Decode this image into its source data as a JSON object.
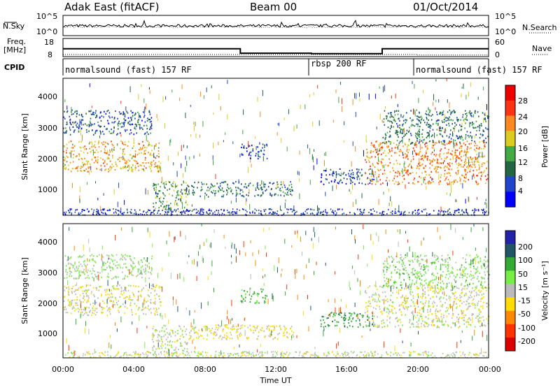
{
  "header": {
    "station": "Adak East (fitACF)",
    "beam": "Beam 00",
    "date": "01/Oct/2014"
  },
  "noise_panel": {
    "left_label": "N.Sky",
    "right_label": "N.Search",
    "left_ticks": [
      "10^5",
      "10^0"
    ],
    "right_ticks": [
      "10^5",
      "10^0"
    ]
  },
  "freq_panel": {
    "left_label_line1": "Freq.",
    "left_label_line2": "[MHz]",
    "right_label": "Nave",
    "left_ticks": [
      "18",
      "8"
    ],
    "right_ticks": [
      "60",
      "0"
    ]
  },
  "cpid_panel": {
    "label": "CPID",
    "segments": [
      {
        "label": "normalsound (fast) 157 RF",
        "start": "00:00",
        "end": "14:00"
      },
      {
        "label": "rbsp 200 RF",
        "start": "14:00",
        "end": "20:00"
      },
      {
        "label": "normalsound (fast) 157 RF",
        "start": "20:00",
        "end": "24:00"
      }
    ]
  },
  "power_panel": {
    "ylabel": "Slant Range [km]",
    "yticks": [
      "1000",
      "2000",
      "3000",
      "4000"
    ],
    "colorbar_label": "Power [dB]",
    "colorbar_ticks": [
      "4",
      "8",
      "12",
      "16",
      "20",
      "24",
      "28"
    ],
    "colors": [
      "#0000ff",
      "#2244cc",
      "#226644",
      "#44aa44",
      "#ddcc22",
      "#ff8822",
      "#ff3311",
      "#ee0000"
    ]
  },
  "velocity_panel": {
    "ylabel": "Slant Range [km]",
    "yticks": [
      "1000",
      "2000",
      "3000",
      "4000"
    ],
    "colorbar_label": "Velocity [m s⁻¹]",
    "colorbar_ticks": [
      "200",
      "100",
      "50",
      "15",
      "-15",
      "-50",
      "-100",
      "-200"
    ],
    "colors": [
      "#2222aa",
      "#225566",
      "#33aa33",
      "#77ee44",
      "#bbbbbb",
      "#ffdd00",
      "#ff8800",
      "#ff3300",
      "#dd0000"
    ]
  },
  "xaxis": {
    "label": "Time UT",
    "ticks": [
      "00:00",
      "04:00",
      "08:00",
      "12:00",
      "16:00",
      "20:00",
      "00:00"
    ]
  },
  "chart_data": {
    "type": "heatmap",
    "title": "Adak East (fitACF)",
    "subtitle": "Beam 00 01/Oct/2014",
    "xlabel": "Time UT",
    "ylabel": "Slant Range [km]",
    "x_range": [
      "00:00",
      "24:00"
    ],
    "ylim": [
      180,
      4600
    ],
    "power_range_dB": [
      0,
      32
    ],
    "velocity_range": [
      -250,
      250
    ],
    "frequency_MHz": [
      {
        "start": "00:00",
        "end": "10:00",
        "value": 12.3
      },
      {
        "start": "10:00",
        "end": "14:00",
        "value": 9.9
      },
      {
        "start": "14:00",
        "end": "18:00",
        "value": 9.6
      },
      {
        "start": "18:00",
        "end": "24:00",
        "value": 12.3
      }
    ],
    "nave": [
      {
        "start": "00:00",
        "end": "20:00",
        "value": 7
      },
      {
        "start": "20:00",
        "end": "24:00",
        "value": 5
      }
    ],
    "echo_regions": [
      {
        "start": "00:00",
        "end": "05:30",
        "range_km": [
          1600,
          2600
        ],
        "power_dB": 20,
        "velocity": -10
      },
      {
        "start": "00:00",
        "end": "05:00",
        "range_km": [
          2800,
          3600
        ],
        "power_dB": 8,
        "velocity": 20
      },
      {
        "start": "05:00",
        "end": "07:00",
        "range_km": [
          300,
          1300
        ],
        "power_dB": 14,
        "velocity": 0
      },
      {
        "start": "07:00",
        "end": "13:00",
        "range_km": [
          800,
          1300
        ],
        "power_dB": 10,
        "velocity": -20
      },
      {
        "start": "10:00",
        "end": "11:30",
        "range_km": [
          2000,
          2500
        ],
        "power_dB": 6,
        "velocity": 50
      },
      {
        "start": "14:30",
        "end": "17:30",
        "range_km": [
          1200,
          1700
        ],
        "power_dB": 6,
        "velocity": 80
      },
      {
        "start": "17:00",
        "end": "24:00",
        "range_km": [
          1200,
          2600
        ],
        "power_dB": 22,
        "velocity": -5
      },
      {
        "start": "18:00",
        "end": "24:00",
        "range_km": [
          2500,
          3600
        ],
        "power_dB": 10,
        "velocity": 30
      }
    ]
  }
}
